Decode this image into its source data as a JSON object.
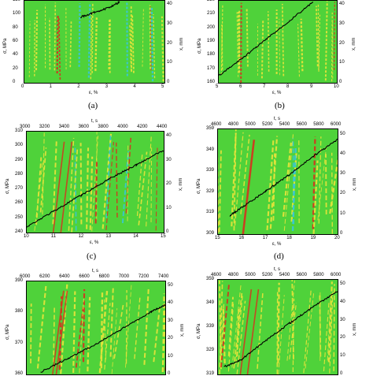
{
  "figure": {
    "captions": [
      "(a)",
      "(b)",
      "(c)",
      "(d)"
    ],
    "colors": {
      "background": "#4fd23a",
      "yellow": "#e8e43a",
      "red": "#d8301e",
      "cyan": "#39c6d6",
      "line": "#000000"
    }
  },
  "chart_data": [
    {
      "type": "heatmap",
      "panel": "a",
      "xlabel": "ε, %",
      "ylabel": "σ, MPa",
      "y2label": "x, mm",
      "x_ticks": [
        "0",
        "1",
        "2",
        "3",
        "4",
        "5"
      ],
      "y_ticks": [
        "0",
        "20",
        "40",
        "60",
        "80",
        "100",
        "120"
      ],
      "y2_ticks": [
        "0",
        "10",
        "20",
        "30",
        "40"
      ],
      "xlim": [
        0,
        5
      ],
      "ylim": [
        0,
        140
      ],
      "stress_curve": {
        "x": [
          2.0,
          2.5,
          3.0,
          3.4
        ],
        "y": [
          112,
          120,
          128,
          138
        ]
      }
    },
    {
      "type": "heatmap",
      "panel": "b",
      "xlabel": "ε, %",
      "ylabel": "σ, MPa",
      "y2label": "x, mm",
      "x_ticks": [
        "5",
        "6",
        "7",
        "8",
        "9",
        "10"
      ],
      "y_ticks": [
        "160",
        "170",
        "180",
        "190",
        "200",
        "210",
        "220"
      ],
      "y2_ticks": [
        "0",
        "10",
        "20",
        "30",
        "40"
      ],
      "xlim": [
        5,
        10
      ],
      "ylim": [
        160,
        230
      ],
      "stress_curve": {
        "x": [
          5.0,
          6.0,
          7.0,
          8.0,
          9.0
        ],
        "y": [
          166,
          181,
          197,
          213,
          229
        ]
      }
    },
    {
      "type": "heatmap",
      "panel": "c",
      "xlabel": "ε, %",
      "ylabel": "σ, MPa",
      "y2label": "x, mm",
      "x2label": "t, s",
      "x_ticks": [
        "10",
        "11",
        "12",
        "13",
        "14",
        "15"
      ],
      "x2_ticks": [
        "3000",
        "3200",
        "3400",
        "3600",
        "3800",
        "4000",
        "4200",
        "4400"
      ],
      "y_ticks": [
        "240",
        "250",
        "260",
        "270",
        "280",
        "290",
        "300",
        "310"
      ],
      "y2_ticks": [
        "0",
        "10",
        "20",
        "30",
        "40"
      ],
      "xlim": [
        10,
        15
      ],
      "ylim": [
        240,
        310
      ],
      "stress_curve": {
        "x": [
          10.0,
          11.0,
          12.0,
          13.0,
          14.0,
          15.0
        ],
        "y": [
          244,
          255,
          266,
          277,
          287,
          297
        ]
      }
    },
    {
      "type": "heatmap",
      "panel": "d",
      "xlabel": "ε, %",
      "ylabel": "σ, MPa",
      "y2label": "x, mm",
      "x2label": "t, s",
      "x_ticks": [
        "15",
        "16",
        "17",
        "18",
        "19",
        "20"
      ],
      "x2_ticks": [
        "4600",
        "4800",
        "5000",
        "5200",
        "5400",
        "5600",
        "5800",
        "6000"
      ],
      "y_ticks": [
        "309",
        "319",
        "329",
        "339",
        "349",
        "359"
      ],
      "y2_ticks": [
        "0",
        "10",
        "20",
        "30",
        "40",
        "50"
      ],
      "xlim": [
        15,
        20
      ],
      "ylim": [
        309,
        360
      ],
      "stress_curve": {
        "x": [
          15.5,
          16.0,
          17.0,
          18.0,
          19.0,
          20.0
        ],
        "y": [
          318,
          322,
          330,
          338,
          347,
          355
        ]
      }
    },
    {
      "type": "heatmap",
      "panel": "e",
      "ylabel": "σ, MPa",
      "y2label": "x, mm",
      "x2label": "t, s",
      "x2_ticks": [
        "6000",
        "6200",
        "6400",
        "6600",
        "6800",
        "7000",
        "7200",
        "7400"
      ],
      "y_ticks": [
        "360",
        "370",
        "380",
        "390"
      ],
      "y2_ticks": [
        "0",
        "10",
        "20",
        "30",
        "40",
        "50"
      ],
      "ylim": [
        355,
        395
      ],
      "stress_curve": {
        "x": [
          0.1,
          0.3,
          0.5,
          0.7,
          0.9,
          1.0
        ],
        "y": [
          356,
          362,
          368,
          375,
          382,
          385
        ]
      }
    },
    {
      "type": "heatmap",
      "panel": "f",
      "ylabel": "σ, MPa",
      "y2label": "x, mm",
      "x2label": "t, s",
      "x2_ticks": [
        "4600",
        "4800",
        "5000",
        "5200",
        "5400",
        "5600",
        "5800",
        "6000"
      ],
      "y_ticks": [
        "319",
        "329",
        "339",
        "349",
        "359"
      ],
      "y2_ticks": [
        "0",
        "10",
        "20",
        "30",
        "40",
        "50"
      ],
      "ylim": [
        312,
        362
      ],
      "stress_curve": {
        "x": [
          0.05,
          0.2,
          0.4,
          0.6,
          0.8,
          1.0
        ],
        "y": [
          316,
          320,
          330,
          339,
          348,
          356
        ]
      }
    }
  ]
}
